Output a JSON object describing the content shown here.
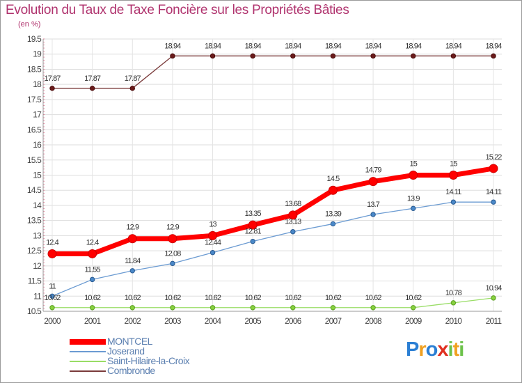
{
  "chart_data": {
    "type": "line",
    "title": "Evolution du Taux de Taxe Foncière sur les Propriétés Bâties",
    "subtitle": "(en %)",
    "x": [
      "2000",
      "2001",
      "2002",
      "2003",
      "2004",
      "2005",
      "2006",
      "2007",
      "2008",
      "2009",
      "2010",
      "2011"
    ],
    "ylim": [
      10.5,
      19.5
    ],
    "yticks": [
      "10.5",
      "11",
      "11.5",
      "12",
      "12.5",
      "13",
      "13.5",
      "14",
      "14.5",
      "15",
      "15.5",
      "16",
      "16.5",
      "17",
      "17.5",
      "18",
      "18.5",
      "19",
      "19.5"
    ],
    "grid": true,
    "legend_position": "bottom-left",
    "series": [
      {
        "name": "MONTCEL",
        "color": "#ff0000",
        "values": [
          12.4,
          12.4,
          12.9,
          12.9,
          13,
          13.35,
          13.68,
          14.5,
          14.79,
          15,
          15,
          15.22
        ],
        "labels": [
          "12.4",
          "12.4",
          "12.9",
          "12.9",
          "13",
          "13.35",
          "13.68",
          "14.5",
          "14.79",
          "15",
          "15",
          "15.22"
        ]
      },
      {
        "name": "Joserand",
        "color": "#6b9bd2",
        "values": [
          11,
          11.55,
          11.84,
          12.08,
          12.44,
          12.81,
          13.13,
          13.39,
          13.7,
          13.9,
          14.11,
          14.11
        ],
        "labels": [
          "11",
          "11.55",
          "11.84",
          "12.08",
          "12.44",
          "12.81",
          "13.13",
          "13.39",
          "13.7",
          "13.9",
          "14.11",
          "14.11"
        ]
      },
      {
        "name": "Saint-Hilaire-la-Croix",
        "color": "#99dd66",
        "values": [
          10.62,
          10.62,
          10.62,
          10.62,
          10.62,
          10.62,
          10.62,
          10.62,
          10.62,
          10.62,
          10.78,
          10.94
        ],
        "labels": [
          "10.62",
          "10.62",
          "10.62",
          "10.62",
          "10.62",
          "10.62",
          "10.62",
          "10.62",
          "10.62",
          "10.62",
          "10.78",
          "10.94"
        ]
      },
      {
        "name": "Combronde",
        "color": "#7a3a3a",
        "values": [
          17.87,
          17.87,
          17.87,
          18.94,
          18.94,
          18.94,
          18.94,
          18.94,
          18.94,
          18.94,
          18.94,
          18.94
        ],
        "labels": [
          "17.87",
          "17.87",
          "17.87",
          "18.94",
          "18.94",
          "18.94",
          "18.94",
          "18.94",
          "18.94",
          "18.94",
          "18.94",
          "18.94"
        ]
      }
    ]
  },
  "logo": {
    "text": "Proxiti",
    "letters": [
      "P",
      "r",
      "o",
      "x",
      "i",
      "t",
      "i"
    ],
    "colors": [
      "#2b7fd4",
      "#f0a020",
      "#2b7fd4",
      "#e03020",
      "#6cc24a",
      "#f0a020",
      "#6cc24a"
    ]
  }
}
